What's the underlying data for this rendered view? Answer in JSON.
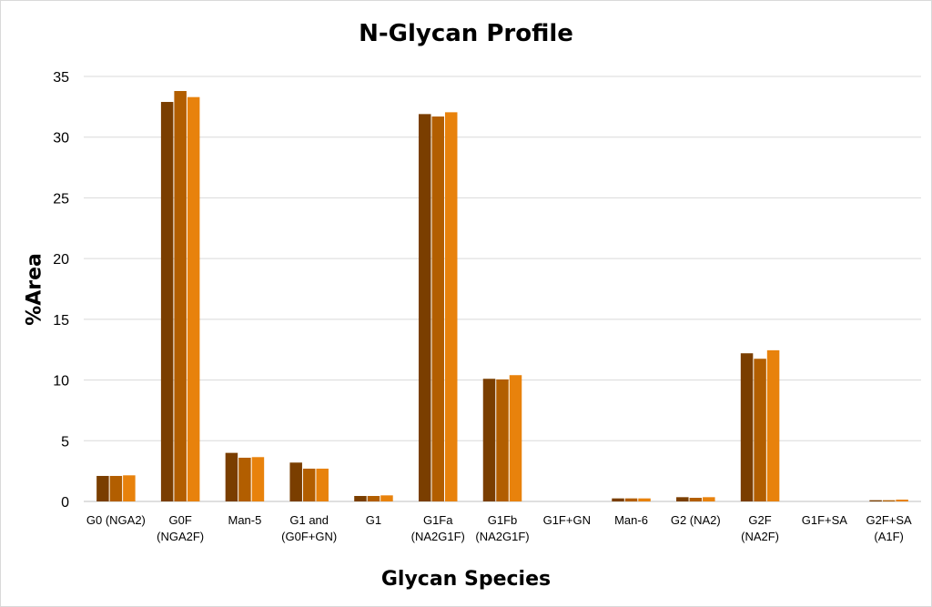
{
  "chart_data": {
    "type": "bar",
    "title": "N-Glycan Profile",
    "xlabel": "Glycan Species",
    "ylabel": "%Area",
    "ylim": [
      0,
      35
    ],
    "yticks": [
      0,
      5,
      10,
      15,
      20,
      25,
      30,
      35
    ],
    "grid": true,
    "categories": [
      [
        "G0 (NGA2)"
      ],
      [
        "G0F",
        "(NGA2F)"
      ],
      [
        "Man-5"
      ],
      [
        "G1 and",
        "(G0F+GN)"
      ],
      [
        "G1"
      ],
      [
        "G1Fa",
        "(NA2G1F)"
      ],
      [
        "G1Fb",
        "(NA2G1F)"
      ],
      [
        "G1F+GN"
      ],
      [
        "Man-6"
      ],
      [
        "G2 (NA2)"
      ],
      [
        "G2F",
        "(NA2F)"
      ],
      [
        "G1F+SA"
      ],
      [
        "G2F+SA",
        "(A1F)"
      ]
    ],
    "series": [
      {
        "color": "#7a3e00",
        "values": [
          2.1,
          32.9,
          4.0,
          3.2,
          0.45,
          31.9,
          10.1,
          0.0,
          0.25,
          0.35,
          12.2,
          0.0,
          0.1
        ]
      },
      {
        "color": "#b25e00",
        "values": [
          2.1,
          33.8,
          3.6,
          2.7,
          0.45,
          31.7,
          10.05,
          0.0,
          0.25,
          0.3,
          11.75,
          0.0,
          0.1
        ]
      },
      {
        "color": "#e8820c",
        "values": [
          2.15,
          33.3,
          3.65,
          2.7,
          0.5,
          32.05,
          10.4,
          0.0,
          0.25,
          0.35,
          12.45,
          0.0,
          0.15
        ]
      }
    ]
  }
}
